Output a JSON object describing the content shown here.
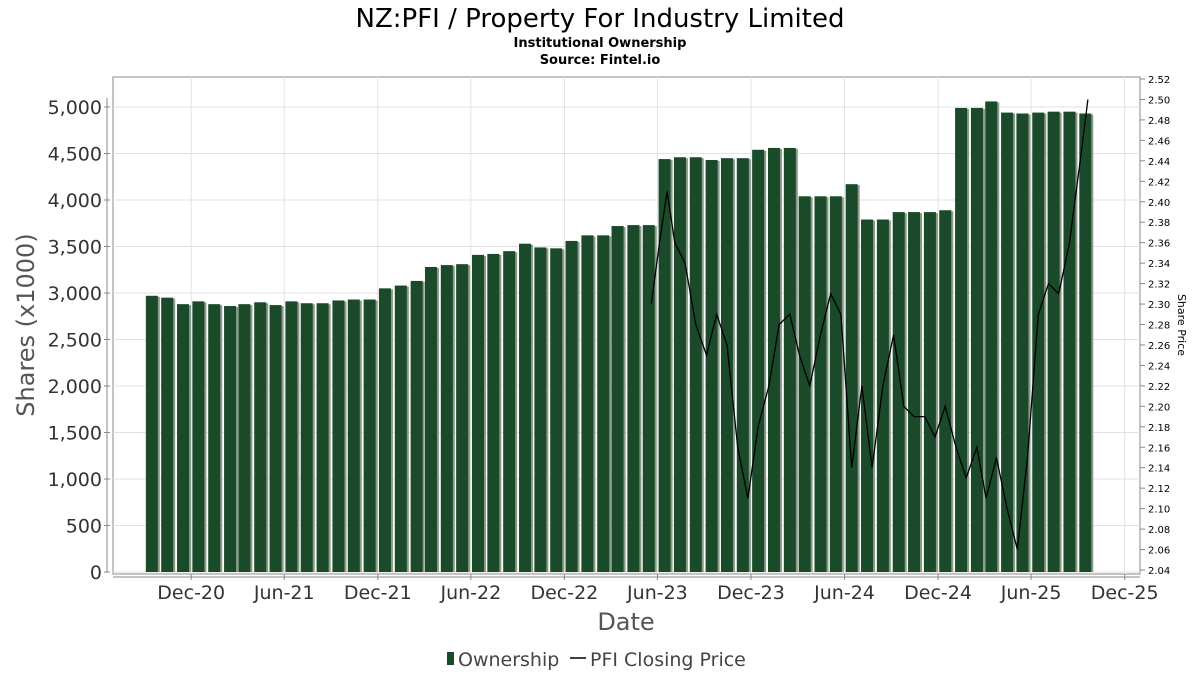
{
  "chart_data": {
    "type": "bar",
    "title": "NZ:PFI / Property For Industry Limited",
    "subtitle": "Institutional Ownership",
    "source": "Source: Fintel.io",
    "xlabel": "Date",
    "ylabel": "Shares (x1000)",
    "y2label": "Share Price",
    "ylim": [
      0,
      5300
    ],
    "y2lim": [
      2.04,
      2.52
    ],
    "yticks": [
      "0",
      "500",
      "1,000",
      "1,500",
      "2,000",
      "2,500",
      "3,000",
      "3,500",
      "4,000",
      "4,500",
      "5,000"
    ],
    "yticks_values": [
      0,
      500,
      1000,
      1500,
      2000,
      2500,
      3000,
      3500,
      4000,
      4500,
      5000
    ],
    "y2ticks": [
      "2.04",
      "2.06",
      "2.08",
      "2.10",
      "2.12",
      "2.14",
      "2.16",
      "2.18",
      "2.20",
      "2.22",
      "2.24",
      "2.26",
      "2.28",
      "2.30",
      "2.32",
      "2.34",
      "2.36",
      "2.38",
      "2.40",
      "2.42",
      "2.44",
      "2.46",
      "2.48",
      "2.50",
      "2.52"
    ],
    "y2ticks_values": [
      2.04,
      2.06,
      2.08,
      2.1,
      2.12,
      2.14,
      2.16,
      2.18,
      2.2,
      2.22,
      2.24,
      2.26,
      2.28,
      2.3,
      2.32,
      2.34,
      2.36,
      2.38,
      2.4,
      2.42,
      2.44,
      2.46,
      2.48,
      2.5,
      2.52
    ],
    "xlim": [
      "2020-07-01",
      "2025-12-31"
    ],
    "xticks": [
      {
        "label": "Dec-20",
        "date": "2020-12-01"
      },
      {
        "label": "Jun-21",
        "date": "2021-06-01"
      },
      {
        "label": "Dec-21",
        "date": "2021-12-01"
      },
      {
        "label": "Jun-22",
        "date": "2022-06-01"
      },
      {
        "label": "Dec-22",
        "date": "2022-12-01"
      },
      {
        "label": "Jun-23",
        "date": "2023-06-01"
      },
      {
        "label": "Dec-23",
        "date": "2023-12-01"
      },
      {
        "label": "Jun-24",
        "date": "2024-06-01"
      },
      {
        "label": "Dec-24",
        "date": "2024-12-01"
      },
      {
        "label": "Jun-25",
        "date": "2025-06-01"
      },
      {
        "label": "Dec-25",
        "date": "2025-12-01"
      }
    ],
    "grid": true,
    "legend_position": "bottom",
    "series": [
      {
        "name": "Ownership",
        "type": "bar",
        "color": "#1a4a2a",
        "x": [
          "2020-09-15",
          "2020-10-15",
          "2020-11-15",
          "2020-12-15",
          "2021-01-15",
          "2021-02-15",
          "2021-03-15",
          "2021-04-15",
          "2021-05-15",
          "2021-06-15",
          "2021-07-15",
          "2021-08-15",
          "2021-09-15",
          "2021-10-15",
          "2021-11-15",
          "2021-12-15",
          "2022-01-15",
          "2022-02-15",
          "2022-03-15",
          "2022-04-15",
          "2022-05-15",
          "2022-06-15",
          "2022-07-15",
          "2022-08-15",
          "2022-09-15",
          "2022-10-15",
          "2022-11-15",
          "2022-12-15",
          "2023-01-15",
          "2023-02-15",
          "2023-03-15",
          "2023-04-15",
          "2023-05-15",
          "2023-06-15",
          "2023-07-15",
          "2023-08-15",
          "2023-09-15",
          "2023-10-15",
          "2023-11-15",
          "2023-12-15",
          "2024-01-15",
          "2024-02-15",
          "2024-03-15",
          "2024-04-15",
          "2024-05-15",
          "2024-06-15",
          "2024-07-15",
          "2024-08-15",
          "2024-09-15",
          "2024-10-15",
          "2024-11-15",
          "2024-12-15",
          "2025-01-15",
          "2025-02-15",
          "2025-03-15",
          "2025-04-15",
          "2025-05-15",
          "2025-06-15",
          "2025-07-15",
          "2025-08-15",
          "2025-09-15"
        ],
        "values": [
          2970,
          2950,
          2880,
          2910,
          2880,
          2860,
          2880,
          2900,
          2870,
          2910,
          2890,
          2890,
          2920,
          2930,
          2930,
          3050,
          3080,
          3130,
          3280,
          3300,
          3310,
          3410,
          3420,
          3450,
          3530,
          3490,
          3480,
          3560,
          3620,
          3620,
          3720,
          3730,
          3730,
          4440,
          4460,
          4460,
          4430,
          4450,
          4450,
          4540,
          4560,
          4560,
          4040,
          4040,
          4040,
          4170,
          3790,
          3790,
          3870,
          3870,
          3870,
          3890,
          4990,
          4990,
          5060,
          4940,
          4930,
          4940,
          4950,
          4950,
          4930
        ]
      },
      {
        "name": "PFI Closing Price",
        "type": "line",
        "color": "#000000",
        "x": [
          "2023-05-20",
          "2023-06-05",
          "2023-06-20",
          "2023-07-05",
          "2023-07-25",
          "2023-08-15",
          "2023-09-05",
          "2023-09-25",
          "2023-10-15",
          "2023-11-05",
          "2023-11-25",
          "2023-12-15",
          "2024-01-05",
          "2024-01-25",
          "2024-02-15",
          "2024-03-05",
          "2024-03-25",
          "2024-04-15",
          "2024-05-05",
          "2024-05-25",
          "2024-06-15",
          "2024-07-05",
          "2024-07-25",
          "2024-08-15",
          "2024-09-05",
          "2024-09-25",
          "2024-10-15",
          "2024-11-05",
          "2024-11-25",
          "2024-12-15",
          "2025-01-05",
          "2025-01-25",
          "2025-02-15",
          "2025-03-05",
          "2025-03-25",
          "2025-04-15",
          "2025-05-05",
          "2025-05-25",
          "2025-06-15",
          "2025-07-05",
          "2025-07-25",
          "2025-08-15",
          "2025-09-05",
          "2025-09-20"
        ],
        "values": [
          2.3,
          2.36,
          2.41,
          2.36,
          2.34,
          2.28,
          2.25,
          2.29,
          2.26,
          2.16,
          2.11,
          2.18,
          2.22,
          2.28,
          2.29,
          2.25,
          2.22,
          2.27,
          2.31,
          2.29,
          2.14,
          2.22,
          2.14,
          2.22,
          2.27,
          2.2,
          2.19,
          2.19,
          2.17,
          2.2,
          2.16,
          2.13,
          2.16,
          2.11,
          2.15,
          2.1,
          2.06,
          2.15,
          2.29,
          2.32,
          2.31,
          2.36,
          2.44,
          2.5
        ]
      }
    ]
  }
}
